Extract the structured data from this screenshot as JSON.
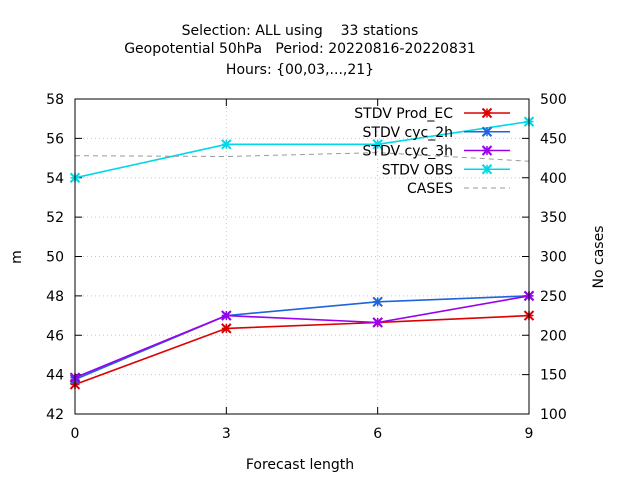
{
  "chart_data": {
    "type": "line",
    "title_lines": [
      "Selection: ALL using    33 stations",
      "Geopotential 50hPa   Period: 20220816-20220831",
      "Hours: {00,03,...,21}"
    ],
    "xlabel": "Forecast length",
    "ylabel": "m",
    "y2label": "No cases",
    "x": [
      0,
      3,
      6,
      9
    ],
    "xlim": [
      0,
      9
    ],
    "ylim": [
      42,
      58
    ],
    "y2lim": [
      100,
      500
    ],
    "x_ticks": [
      0,
      3,
      6,
      9
    ],
    "y_ticks": [
      42,
      44,
      46,
      48,
      50,
      52,
      54,
      56,
      58
    ],
    "y2_ticks": [
      100,
      150,
      200,
      250,
      300,
      350,
      400,
      450,
      500
    ],
    "legend_position": "top-right",
    "series": [
      {
        "name": "STDV Prod_EC",
        "color": "#dd0000",
        "axis": "y",
        "marker": "x",
        "values": [
          43.5,
          46.35,
          46.65,
          47.0
        ]
      },
      {
        "name": "STDV cyc_2h",
        "color": "#1e64dc",
        "axis": "y",
        "marker": "x",
        "values": [
          43.75,
          47.0,
          47.7,
          48.0
        ]
      },
      {
        "name": "STDV cyc_3h",
        "color": "#9900ee",
        "axis": "y",
        "marker": "x",
        "values": [
          43.85,
          47.0,
          46.65,
          48.0
        ]
      },
      {
        "name": "STDV OBS",
        "color": "#00d8e8",
        "axis": "y",
        "marker": "x",
        "values": [
          54.0,
          55.7,
          55.7,
          56.85
        ]
      },
      {
        "name": "CASES",
        "color": "#999999",
        "axis": "y2",
        "dashed": true,
        "values": [
          428,
          427,
          432,
          421
        ]
      }
    ]
  }
}
